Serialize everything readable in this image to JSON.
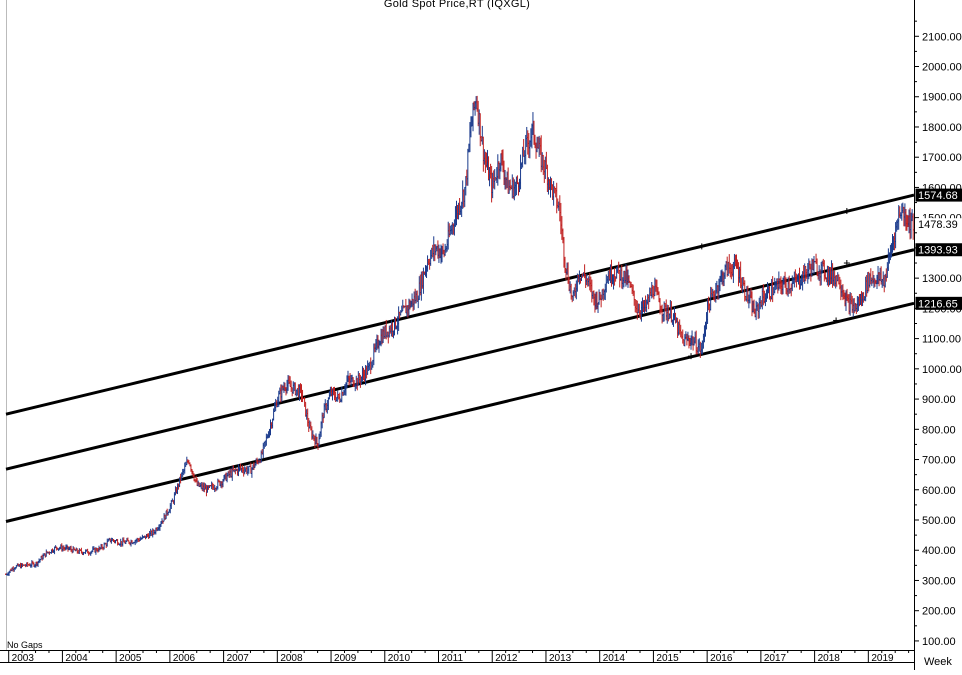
{
  "chart_title": "Gold  Spot  Price,RT  (IQXGL)",
  "bottom_left_label": "No  Gaps",
  "timeframe_label": "Week",
  "chart_data": {
    "type": "line",
    "title": "Gold  Spot  Price,RT  (IQXGL)",
    "xlabel": "",
    "ylabel": "",
    "x_range": [
      2002.95,
      2019.85
    ],
    "ylim": [
      70,
      2220
    ],
    "grid": false,
    "y_tick_labels": [
      "100.00",
      "200.00",
      "300.00",
      "400.00",
      "500.00",
      "600.00",
      "700.00",
      "800.00",
      "900.00",
      "1000.00",
      "1100.00",
      "1200.00",
      "1300.00",
      "1400.00",
      "1500.00",
      "1600.00",
      "1700.00",
      "1800.00",
      "1900.00",
      "2000.00",
      "2100.00"
    ],
    "x_tick_labels": [
      "2003",
      "2004",
      "2005",
      "2006",
      "2007",
      "2008",
      "2009",
      "2010",
      "2011",
      "2012",
      "2013",
      "2014",
      "2015",
      "2016",
      "2017",
      "2018",
      "2019"
    ],
    "price_labels": [
      {
        "value": 1574.68,
        "text": "1574.68",
        "kind": "channel-upper"
      },
      {
        "value": 1478.39,
        "text": "1478.39",
        "kind": "last-price"
      },
      {
        "value": 1393.93,
        "text": "1393.93",
        "kind": "channel-middle"
      },
      {
        "value": 1216.65,
        "text": "1216.65",
        "kind": "channel-lower"
      }
    ],
    "trend_channel": [
      {
        "name": "",
        "x": [
          2002.95,
          2019.85
        ],
        "y": [
          850,
          1574.68
        ]
      },
      {
        "name": "",
        "x": [
          2002.95,
          2019.85
        ],
        "y": [
          668,
          1393.93
        ]
      },
      {
        "name": "",
        "x": [
          2002.95,
          2019.85
        ],
        "y": [
          495,
          1216.65
        ]
      }
    ],
    "channel_markers": [
      {
        "x": 2015.9,
        "y": 1405
      },
      {
        "x": 2018.6,
        "y": 1522
      },
      {
        "x": 2015.7,
        "y": 1042
      },
      {
        "x": 2018.6,
        "y": 1350
      },
      {
        "x": 2018.4,
        "y": 1160
      }
    ],
    "series": [
      {
        "name": "",
        "x": [
          2002.95,
          2003.1,
          2003.3,
          2003.5,
          2003.7,
          2003.9,
          2004.1,
          2004.3,
          2004.5,
          2004.7,
          2004.9,
          2005.1,
          2005.3,
          2005.5,
          2005.7,
          2005.9,
          2006.05,
          2006.2,
          2006.35,
          2006.5,
          2006.7,
          2006.9,
          2007.1,
          2007.3,
          2007.5,
          2007.7,
          2007.85,
          2008.0,
          2008.15,
          2008.3,
          2008.45,
          2008.6,
          2008.75,
          2008.85,
          2009.0,
          2009.15,
          2009.3,
          2009.5,
          2009.7,
          2009.9,
          2010.0,
          2010.2,
          2010.4,
          2010.6,
          2010.8,
          2010.95,
          2011.1,
          2011.3,
          2011.5,
          2011.6,
          2011.7,
          2011.85,
          2012.0,
          2012.15,
          2012.3,
          2012.45,
          2012.6,
          2012.75,
          2012.9,
          2013.0,
          2013.1,
          2013.25,
          2013.35,
          2013.5,
          2013.6,
          2013.75,
          2013.9,
          2014.0,
          2014.15,
          2014.3,
          2014.5,
          2014.7,
          2014.85,
          2015.0,
          2015.15,
          2015.35,
          2015.55,
          2015.7,
          2015.9,
          2016.0,
          2016.15,
          2016.35,
          2016.55,
          2016.7,
          2016.9,
          2017.0,
          2017.2,
          2017.4,
          2017.6,
          2017.8,
          2017.95,
          2018.1,
          2018.3,
          2018.45,
          2018.6,
          2018.75,
          2018.9,
          2019.0,
          2019.15,
          2019.3,
          2019.45,
          2019.6,
          2019.75,
          2019.85
        ],
        "y": [
          320,
          345,
          350,
          355,
          390,
          410,
          405,
          395,
          395,
          405,
          435,
          425,
          430,
          440,
          460,
          510,
          560,
          640,
          700,
          615,
          600,
          620,
          650,
          670,
          665,
          710,
          800,
          900,
          950,
          935,
          920,
          800,
          750,
          850,
          920,
          900,
          960,
          960,
          1000,
          1100,
          1120,
          1150,
          1200,
          1240,
          1360,
          1400,
          1380,
          1500,
          1600,
          1800,
          1900,
          1700,
          1600,
          1700,
          1600,
          1600,
          1720,
          1790,
          1700,
          1660,
          1600,
          1530,
          1360,
          1220,
          1320,
          1300,
          1230,
          1230,
          1310,
          1320,
          1300,
          1200,
          1200,
          1270,
          1200,
          1180,
          1090,
          1100,
          1060,
          1200,
          1260,
          1330,
          1340,
          1260,
          1180,
          1230,
          1260,
          1280,
          1280,
          1310,
          1340,
          1330,
          1310,
          1300,
          1220,
          1200,
          1240,
          1300,
          1300,
          1290,
          1420,
          1530,
          1490,
          1478
        ]
      }
    ]
  },
  "colors": {
    "background": "#ffffff",
    "axis": "#000000",
    "candle_up": "#1a3a8c",
    "candle_down": "#c02020",
    "channel_line": "#000000",
    "label_box": "#000000",
    "label_text": "#ffffff",
    "last_label_text": "#000000"
  }
}
